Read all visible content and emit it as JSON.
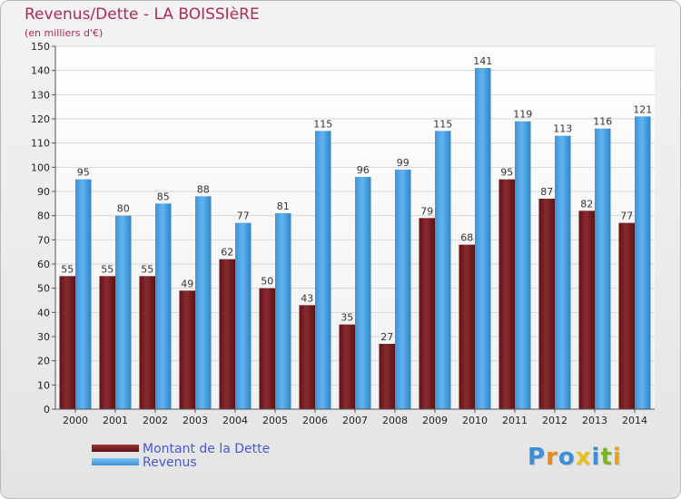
{
  "title": "Revenus/Dette - LA BOISSIèRE",
  "subtitle": "(en milliers d'€)",
  "colors": {
    "title": "#b02a50",
    "dette": "#7a1f24",
    "revenus": "#4da3e6",
    "legend_text": "#4a57d6"
  },
  "legend": {
    "dette_label": "Montant de la Dette",
    "revenus_label": "Revenus"
  },
  "logo": {
    "letters": [
      "P",
      "r",
      "o",
      "x",
      "i",
      "t",
      "i"
    ],
    "colors": [
      "#3b8fd6",
      "#e88a1a",
      "#3b8fd6",
      "#e8c21a",
      "#3b8fd6",
      "#7ab42a",
      "#e8a21a"
    ]
  },
  "chart_data": {
    "type": "bar",
    "categories": [
      "2000",
      "2001",
      "2002",
      "2003",
      "2004",
      "2005",
      "2006",
      "2007",
      "2008",
      "2009",
      "2010",
      "2011",
      "2012",
      "2013",
      "2014"
    ],
    "series": [
      {
        "name": "Montant de la Dette",
        "values": [
          55,
          55,
          55,
          49,
          62,
          50,
          43,
          35,
          27,
          79,
          68,
          95,
          87,
          82,
          77
        ]
      },
      {
        "name": "Revenus",
        "values": [
          95,
          80,
          85,
          88,
          77,
          81,
          115,
          96,
          99,
          115,
          141,
          119,
          113,
          116,
          121
        ]
      }
    ],
    "ylim": [
      0,
      150
    ],
    "yticks": [
      0,
      10,
      20,
      30,
      40,
      50,
      60,
      70,
      80,
      90,
      100,
      110,
      120,
      130,
      140,
      150
    ],
    "grid": true,
    "legend_position": "bottom-left"
  }
}
